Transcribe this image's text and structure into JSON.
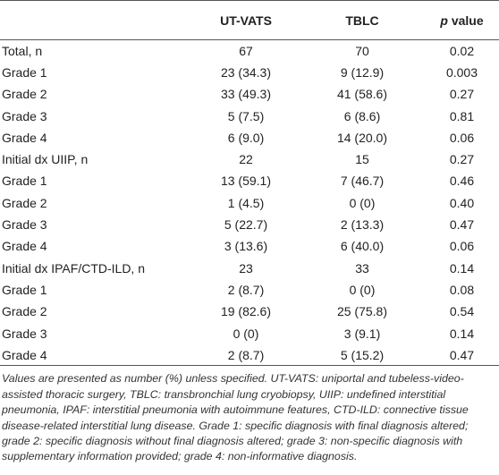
{
  "table": {
    "header": [
      "UT-VATS",
      "TBLC",
      {
        "symbol": "p",
        "word": "value"
      }
    ],
    "rows": [
      [
        "Total, n",
        "67",
        "70",
        "0.02"
      ],
      [
        "Grade 1",
        "23 (34.3)",
        "9 (12.9)",
        "0.003"
      ],
      [
        "Grade 2",
        "33 (49.3)",
        "41 (58.6)",
        "0.27"
      ],
      [
        "Grade 3",
        "5 (7.5)",
        "6 (8.6)",
        "0.81"
      ],
      [
        "Grade 4",
        "6 (9.0)",
        "14 (20.0)",
        "0.06"
      ],
      [
        "Initial dx UIIP, n",
        "22",
        "15",
        "0.27"
      ],
      [
        "Grade 1",
        "13 (59.1)",
        "7 (46.7)",
        "0.46"
      ],
      [
        "Grade 2",
        "1 (4.5)",
        "0 (0)",
        "0.40"
      ],
      [
        "Grade 3",
        "5 (22.7)",
        "2 (13.3)",
        "0.47"
      ],
      [
        "Grade 4",
        "3 (13.6)",
        "6 (40.0)",
        "0.06"
      ],
      [
        "Initial dx IPAF/CTD-ILD, n",
        "23",
        "33",
        "0.14"
      ],
      [
        "Grade 1",
        "2 (8.7)",
        "0 (0)",
        "0.08"
      ],
      [
        "Grade 2",
        "19 (82.6)",
        "25 (75.8)",
        "0.54"
      ],
      [
        "Grade 3",
        "0 (0)",
        "3 (9.1)",
        "0.14"
      ],
      [
        "Grade 4",
        "2 (8.7)",
        "5 (15.2)",
        "0.47"
      ]
    ],
    "footnote": "Values are presented as number (%) unless specified. UT-VATS: uniportal and tubeless-video-assisted thoracic surgery, TBLC: transbronchial lung cryobiopsy, UIIP: undefined interstitial pneumonia, IPAF: interstitial pneumonia with autoimmune features, CTD-ILD: connective tissue disease-related interstitial lung disease. Grade 1: specific diagnosis with final diagnosis altered; grade 2: specific diagnosis without final diagnosis altered; grade 3: non-specific diagnosis with supplementary information provided; grade 4: non-informative diagnosis."
  }
}
